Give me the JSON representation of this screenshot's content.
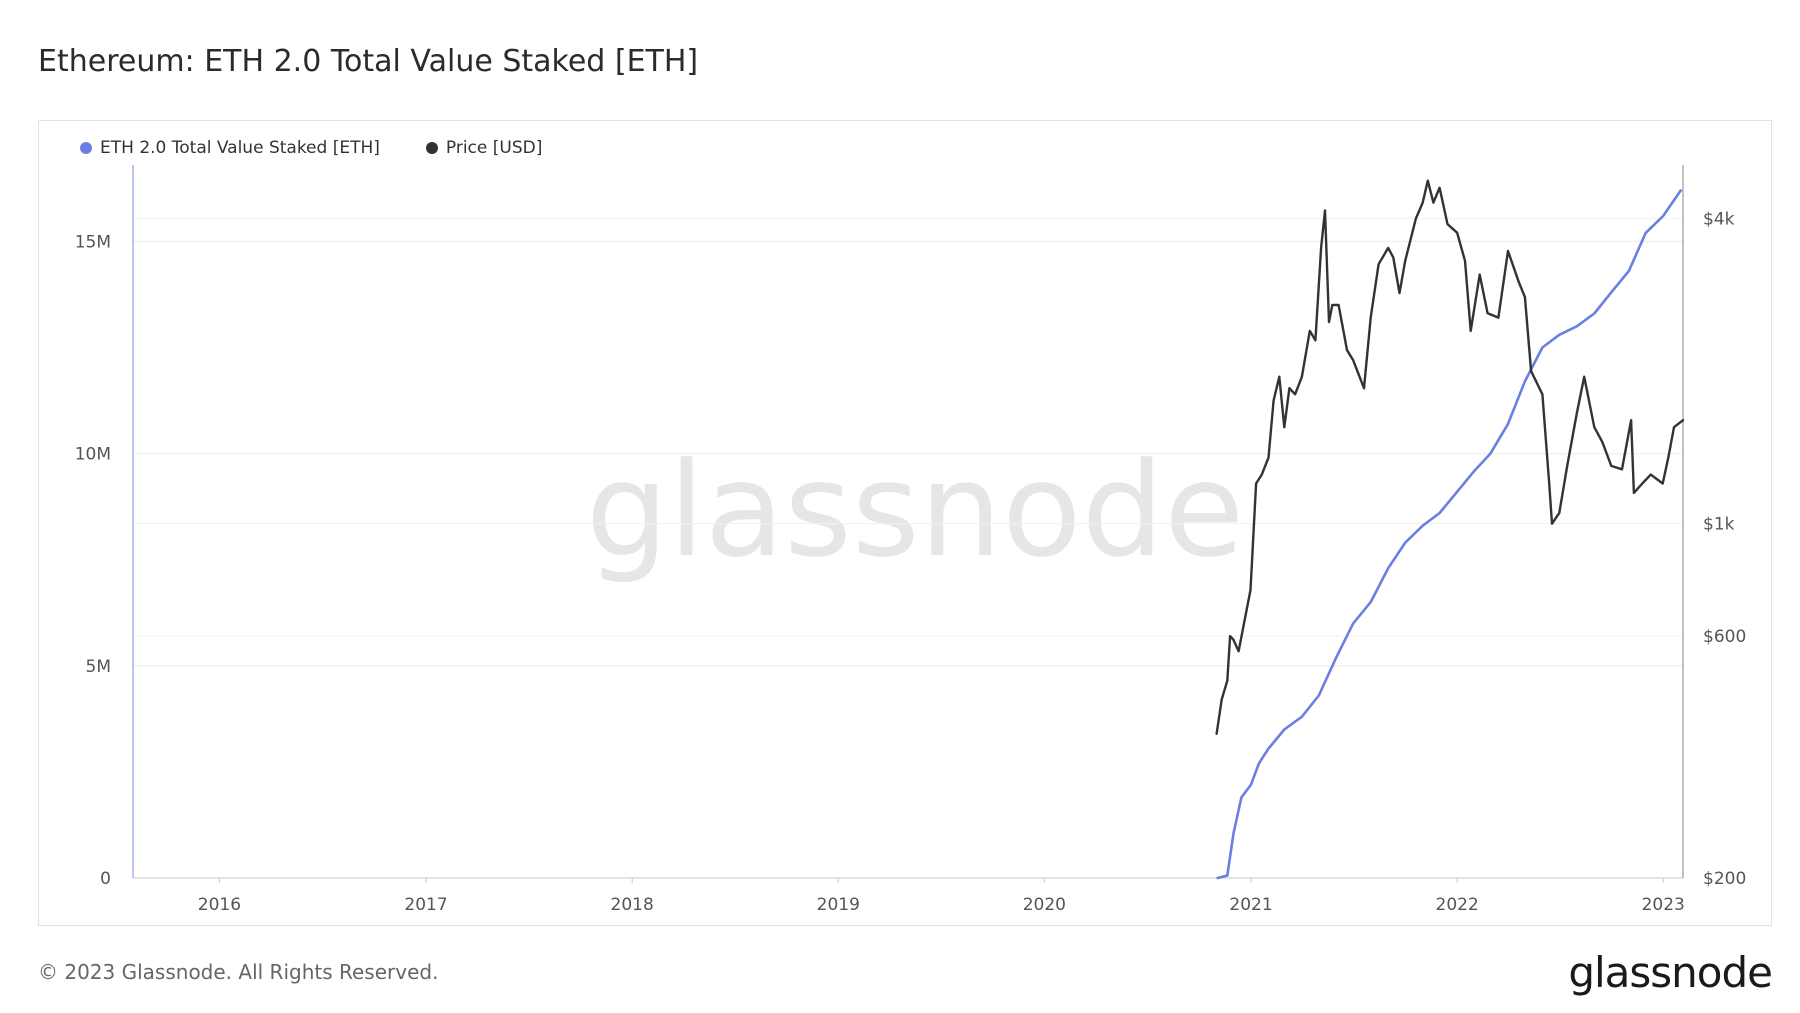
{
  "title": "Ethereum: ETH 2.0 Total Value Staked [ETH]",
  "footer": "© 2023 Glassnode. All Rights Reserved.",
  "logo": "glassnode",
  "watermark": "glassnode",
  "legend": [
    {
      "label": "ETH 2.0 Total Value Staked [ETH]",
      "color": "#6b7fe3"
    },
    {
      "label": "Price [USD]",
      "color": "#333333"
    }
  ],
  "chart_data": {
    "type": "line",
    "x_range": [
      "2015-08-01",
      "2023-02-05"
    ],
    "x_ticks": [
      "2016",
      "2017",
      "2018",
      "2019",
      "2020",
      "2021",
      "2022",
      "2023"
    ],
    "y_left": {
      "min": 0,
      "max": 16800000,
      "ticks": [
        "0",
        "5M",
        "10M",
        "15M"
      ],
      "tick_values": [
        0,
        5000000,
        10000000,
        15000000
      ]
    },
    "y_right": {
      "scale": "log",
      "min": 200,
      "max": 5100,
      "ticks": [
        "$200",
        "$600",
        "$1k",
        "$4k"
      ],
      "tick_values": [
        200,
        600,
        1000,
        4000
      ]
    },
    "series": [
      {
        "name": "ETH 2.0 Total Value Staked [ETH]",
        "axis": "left",
        "color": "#6b7fe3",
        "points": [
          [
            "2020-11-03",
            0
          ],
          [
            "2020-11-20",
            60000
          ],
          [
            "2020-12-01",
            1050000
          ],
          [
            "2020-12-15",
            1900000
          ],
          [
            "2021-01-01",
            2200000
          ],
          [
            "2021-01-15",
            2700000
          ],
          [
            "2021-02-01",
            3050000
          ],
          [
            "2021-03-01",
            3500000
          ],
          [
            "2021-04-01",
            3800000
          ],
          [
            "2021-05-01",
            4300000
          ],
          [
            "2021-06-01",
            5200000
          ],
          [
            "2021-07-01",
            6000000
          ],
          [
            "2021-08-01",
            6500000
          ],
          [
            "2021-09-01",
            7300000
          ],
          [
            "2021-10-01",
            7900000
          ],
          [
            "2021-11-01",
            8300000
          ],
          [
            "2021-12-01",
            8600000
          ],
          [
            "2022-01-01",
            9100000
          ],
          [
            "2022-02-01",
            9600000
          ],
          [
            "2022-03-01",
            10000000
          ],
          [
            "2022-04-01",
            10700000
          ],
          [
            "2022-05-01",
            11700000
          ],
          [
            "2022-06-01",
            12500000
          ],
          [
            "2022-07-01",
            12800000
          ],
          [
            "2022-08-01",
            13000000
          ],
          [
            "2022-09-01",
            13300000
          ],
          [
            "2022-10-01",
            13800000
          ],
          [
            "2022-11-01",
            14300000
          ],
          [
            "2022-12-01",
            15200000
          ],
          [
            "2023-01-01",
            15600000
          ],
          [
            "2023-02-01",
            16200000
          ]
        ]
      },
      {
        "name": "Price [USD]",
        "axis": "right",
        "color": "#333333",
        "points": [
          [
            "2020-11-01",
            385
          ],
          [
            "2020-11-10",
            450
          ],
          [
            "2020-11-20",
            490
          ],
          [
            "2020-11-25",
            600
          ],
          [
            "2020-12-01",
            590
          ],
          [
            "2020-12-10",
            560
          ],
          [
            "2020-12-20",
            640
          ],
          [
            "2020-12-31",
            740
          ],
          [
            "2021-01-10",
            1200
          ],
          [
            "2021-01-20",
            1250
          ],
          [
            "2021-02-01",
            1350
          ],
          [
            "2021-02-10",
            1750
          ],
          [
            "2021-02-20",
            1950
          ],
          [
            "2021-03-01",
            1550
          ],
          [
            "2021-03-10",
            1850
          ],
          [
            "2021-03-20",
            1800
          ],
          [
            "2021-04-01",
            1950
          ],
          [
            "2021-04-15",
            2400
          ],
          [
            "2021-04-25",
            2300
          ],
          [
            "2021-05-05",
            3500
          ],
          [
            "2021-05-12",
            4150
          ],
          [
            "2021-05-19",
            2500
          ],
          [
            "2021-05-25",
            2700
          ],
          [
            "2021-06-05",
            2700
          ],
          [
            "2021-06-20",
            2200
          ],
          [
            "2021-07-01",
            2100
          ],
          [
            "2021-07-20",
            1850
          ],
          [
            "2021-08-01",
            2550
          ],
          [
            "2021-08-15",
            3250
          ],
          [
            "2021-09-01",
            3500
          ],
          [
            "2021-09-10",
            3350
          ],
          [
            "2021-09-21",
            2850
          ],
          [
            "2021-10-01",
            3300
          ],
          [
            "2021-10-20",
            4000
          ],
          [
            "2021-11-01",
            4300
          ],
          [
            "2021-11-10",
            4750
          ],
          [
            "2021-11-20",
            4300
          ],
          [
            "2021-12-01",
            4600
          ],
          [
            "2021-12-15",
            3900
          ],
          [
            "2022-01-01",
            3750
          ],
          [
            "2022-01-15",
            3300
          ],
          [
            "2022-01-25",
            2400
          ],
          [
            "2022-02-10",
            3100
          ],
          [
            "2022-02-24",
            2600
          ],
          [
            "2022-03-15",
            2550
          ],
          [
            "2022-04-01",
            3450
          ],
          [
            "2022-04-20",
            3000
          ],
          [
            "2022-05-01",
            2800
          ],
          [
            "2022-05-12",
            2000
          ],
          [
            "2022-06-01",
            1800
          ],
          [
            "2022-06-13",
            1200
          ],
          [
            "2022-06-18",
            1000
          ],
          [
            "2022-07-01",
            1050
          ],
          [
            "2022-07-15",
            1300
          ],
          [
            "2022-08-01",
            1650
          ],
          [
            "2022-08-14",
            1950
          ],
          [
            "2022-09-01",
            1550
          ],
          [
            "2022-09-15",
            1450
          ],
          [
            "2022-10-01",
            1300
          ],
          [
            "2022-10-20",
            1280
          ],
          [
            "2022-11-05",
            1600
          ],
          [
            "2022-11-10",
            1150
          ],
          [
            "2022-11-25",
            1200
          ],
          [
            "2022-12-10",
            1250
          ],
          [
            "2022-12-31",
            1200
          ],
          [
            "2023-01-10",
            1350
          ],
          [
            "2023-01-20",
            1550
          ],
          [
            "2023-02-05",
            1600
          ]
        ]
      }
    ],
    "grid": true,
    "legend_position": "top-left"
  }
}
